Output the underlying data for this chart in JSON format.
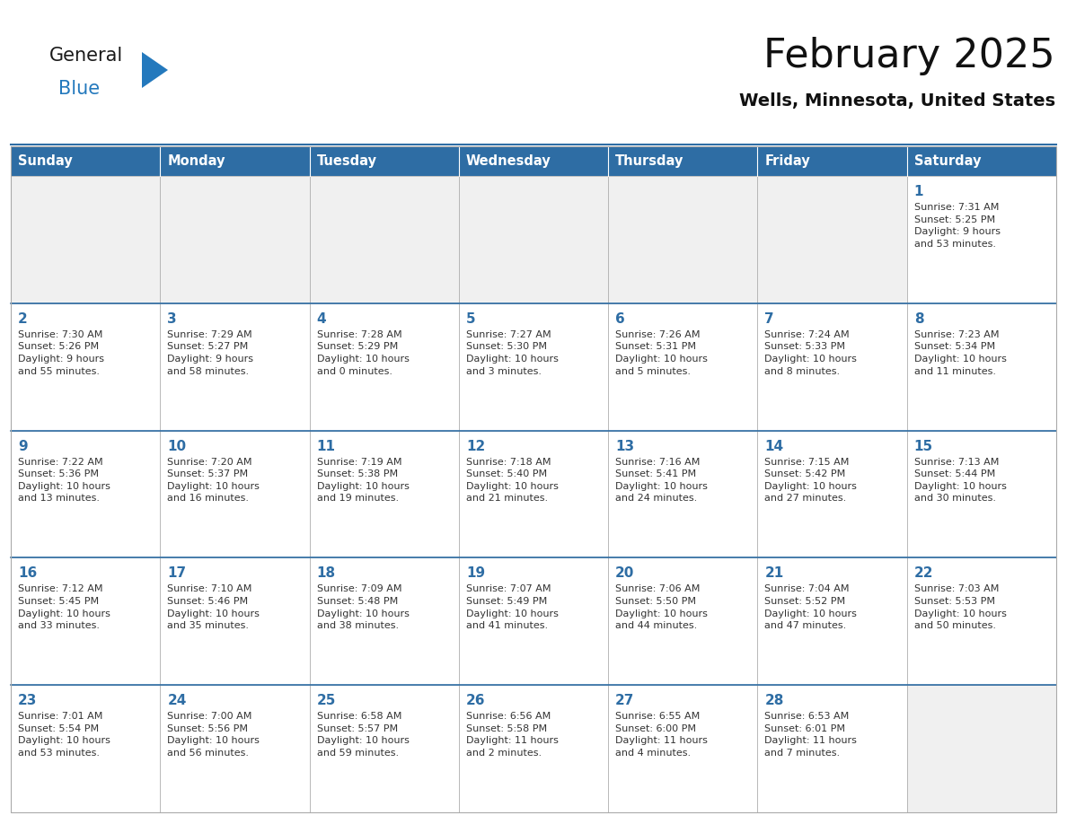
{
  "title": "February 2025",
  "subtitle": "Wells, Minnesota, United States",
  "header_color": "#2E6DA4",
  "header_text_color": "#FFFFFF",
  "cell_bg_color": "#FFFFFF",
  "empty_cell_bg_color": "#F0F0F0",
  "cell_border_color": "#AAAAAA",
  "row_divider_color": "#2E6DA4",
  "day_number_color": "#2E6DA4",
  "cell_text_color": "#333333",
  "background_color": "#FFFFFF",
  "days_of_week": [
    "Sunday",
    "Monday",
    "Tuesday",
    "Wednesday",
    "Thursday",
    "Friday",
    "Saturday"
  ],
  "weeks": [
    [
      {
        "day": null,
        "info": null
      },
      {
        "day": null,
        "info": null
      },
      {
        "day": null,
        "info": null
      },
      {
        "day": null,
        "info": null
      },
      {
        "day": null,
        "info": null
      },
      {
        "day": null,
        "info": null
      },
      {
        "day": 1,
        "info": "Sunrise: 7:31 AM\nSunset: 5:25 PM\nDaylight: 9 hours\nand 53 minutes."
      }
    ],
    [
      {
        "day": 2,
        "info": "Sunrise: 7:30 AM\nSunset: 5:26 PM\nDaylight: 9 hours\nand 55 minutes."
      },
      {
        "day": 3,
        "info": "Sunrise: 7:29 AM\nSunset: 5:27 PM\nDaylight: 9 hours\nand 58 minutes."
      },
      {
        "day": 4,
        "info": "Sunrise: 7:28 AM\nSunset: 5:29 PM\nDaylight: 10 hours\nand 0 minutes."
      },
      {
        "day": 5,
        "info": "Sunrise: 7:27 AM\nSunset: 5:30 PM\nDaylight: 10 hours\nand 3 minutes."
      },
      {
        "day": 6,
        "info": "Sunrise: 7:26 AM\nSunset: 5:31 PM\nDaylight: 10 hours\nand 5 minutes."
      },
      {
        "day": 7,
        "info": "Sunrise: 7:24 AM\nSunset: 5:33 PM\nDaylight: 10 hours\nand 8 minutes."
      },
      {
        "day": 8,
        "info": "Sunrise: 7:23 AM\nSunset: 5:34 PM\nDaylight: 10 hours\nand 11 minutes."
      }
    ],
    [
      {
        "day": 9,
        "info": "Sunrise: 7:22 AM\nSunset: 5:36 PM\nDaylight: 10 hours\nand 13 minutes."
      },
      {
        "day": 10,
        "info": "Sunrise: 7:20 AM\nSunset: 5:37 PM\nDaylight: 10 hours\nand 16 minutes."
      },
      {
        "day": 11,
        "info": "Sunrise: 7:19 AM\nSunset: 5:38 PM\nDaylight: 10 hours\nand 19 minutes."
      },
      {
        "day": 12,
        "info": "Sunrise: 7:18 AM\nSunset: 5:40 PM\nDaylight: 10 hours\nand 21 minutes."
      },
      {
        "day": 13,
        "info": "Sunrise: 7:16 AM\nSunset: 5:41 PM\nDaylight: 10 hours\nand 24 minutes."
      },
      {
        "day": 14,
        "info": "Sunrise: 7:15 AM\nSunset: 5:42 PM\nDaylight: 10 hours\nand 27 minutes."
      },
      {
        "day": 15,
        "info": "Sunrise: 7:13 AM\nSunset: 5:44 PM\nDaylight: 10 hours\nand 30 minutes."
      }
    ],
    [
      {
        "day": 16,
        "info": "Sunrise: 7:12 AM\nSunset: 5:45 PM\nDaylight: 10 hours\nand 33 minutes."
      },
      {
        "day": 17,
        "info": "Sunrise: 7:10 AM\nSunset: 5:46 PM\nDaylight: 10 hours\nand 35 minutes."
      },
      {
        "day": 18,
        "info": "Sunrise: 7:09 AM\nSunset: 5:48 PM\nDaylight: 10 hours\nand 38 minutes."
      },
      {
        "day": 19,
        "info": "Sunrise: 7:07 AM\nSunset: 5:49 PM\nDaylight: 10 hours\nand 41 minutes."
      },
      {
        "day": 20,
        "info": "Sunrise: 7:06 AM\nSunset: 5:50 PM\nDaylight: 10 hours\nand 44 minutes."
      },
      {
        "day": 21,
        "info": "Sunrise: 7:04 AM\nSunset: 5:52 PM\nDaylight: 10 hours\nand 47 minutes."
      },
      {
        "day": 22,
        "info": "Sunrise: 7:03 AM\nSunset: 5:53 PM\nDaylight: 10 hours\nand 50 minutes."
      }
    ],
    [
      {
        "day": 23,
        "info": "Sunrise: 7:01 AM\nSunset: 5:54 PM\nDaylight: 10 hours\nand 53 minutes."
      },
      {
        "day": 24,
        "info": "Sunrise: 7:00 AM\nSunset: 5:56 PM\nDaylight: 10 hours\nand 56 minutes."
      },
      {
        "day": 25,
        "info": "Sunrise: 6:58 AM\nSunset: 5:57 PM\nDaylight: 10 hours\nand 59 minutes."
      },
      {
        "day": 26,
        "info": "Sunrise: 6:56 AM\nSunset: 5:58 PM\nDaylight: 11 hours\nand 2 minutes."
      },
      {
        "day": 27,
        "info": "Sunrise: 6:55 AM\nSunset: 6:00 PM\nDaylight: 11 hours\nand 4 minutes."
      },
      {
        "day": 28,
        "info": "Sunrise: 6:53 AM\nSunset: 6:01 PM\nDaylight: 11 hours\nand 7 minutes."
      },
      {
        "day": null,
        "info": null
      }
    ]
  ],
  "logo_color_general": "#1a1a1a",
  "logo_color_blue": "#2479BD",
  "logo_triangle_color": "#2479BD",
  "title_color": "#111111",
  "subtitle_color": "#111111"
}
